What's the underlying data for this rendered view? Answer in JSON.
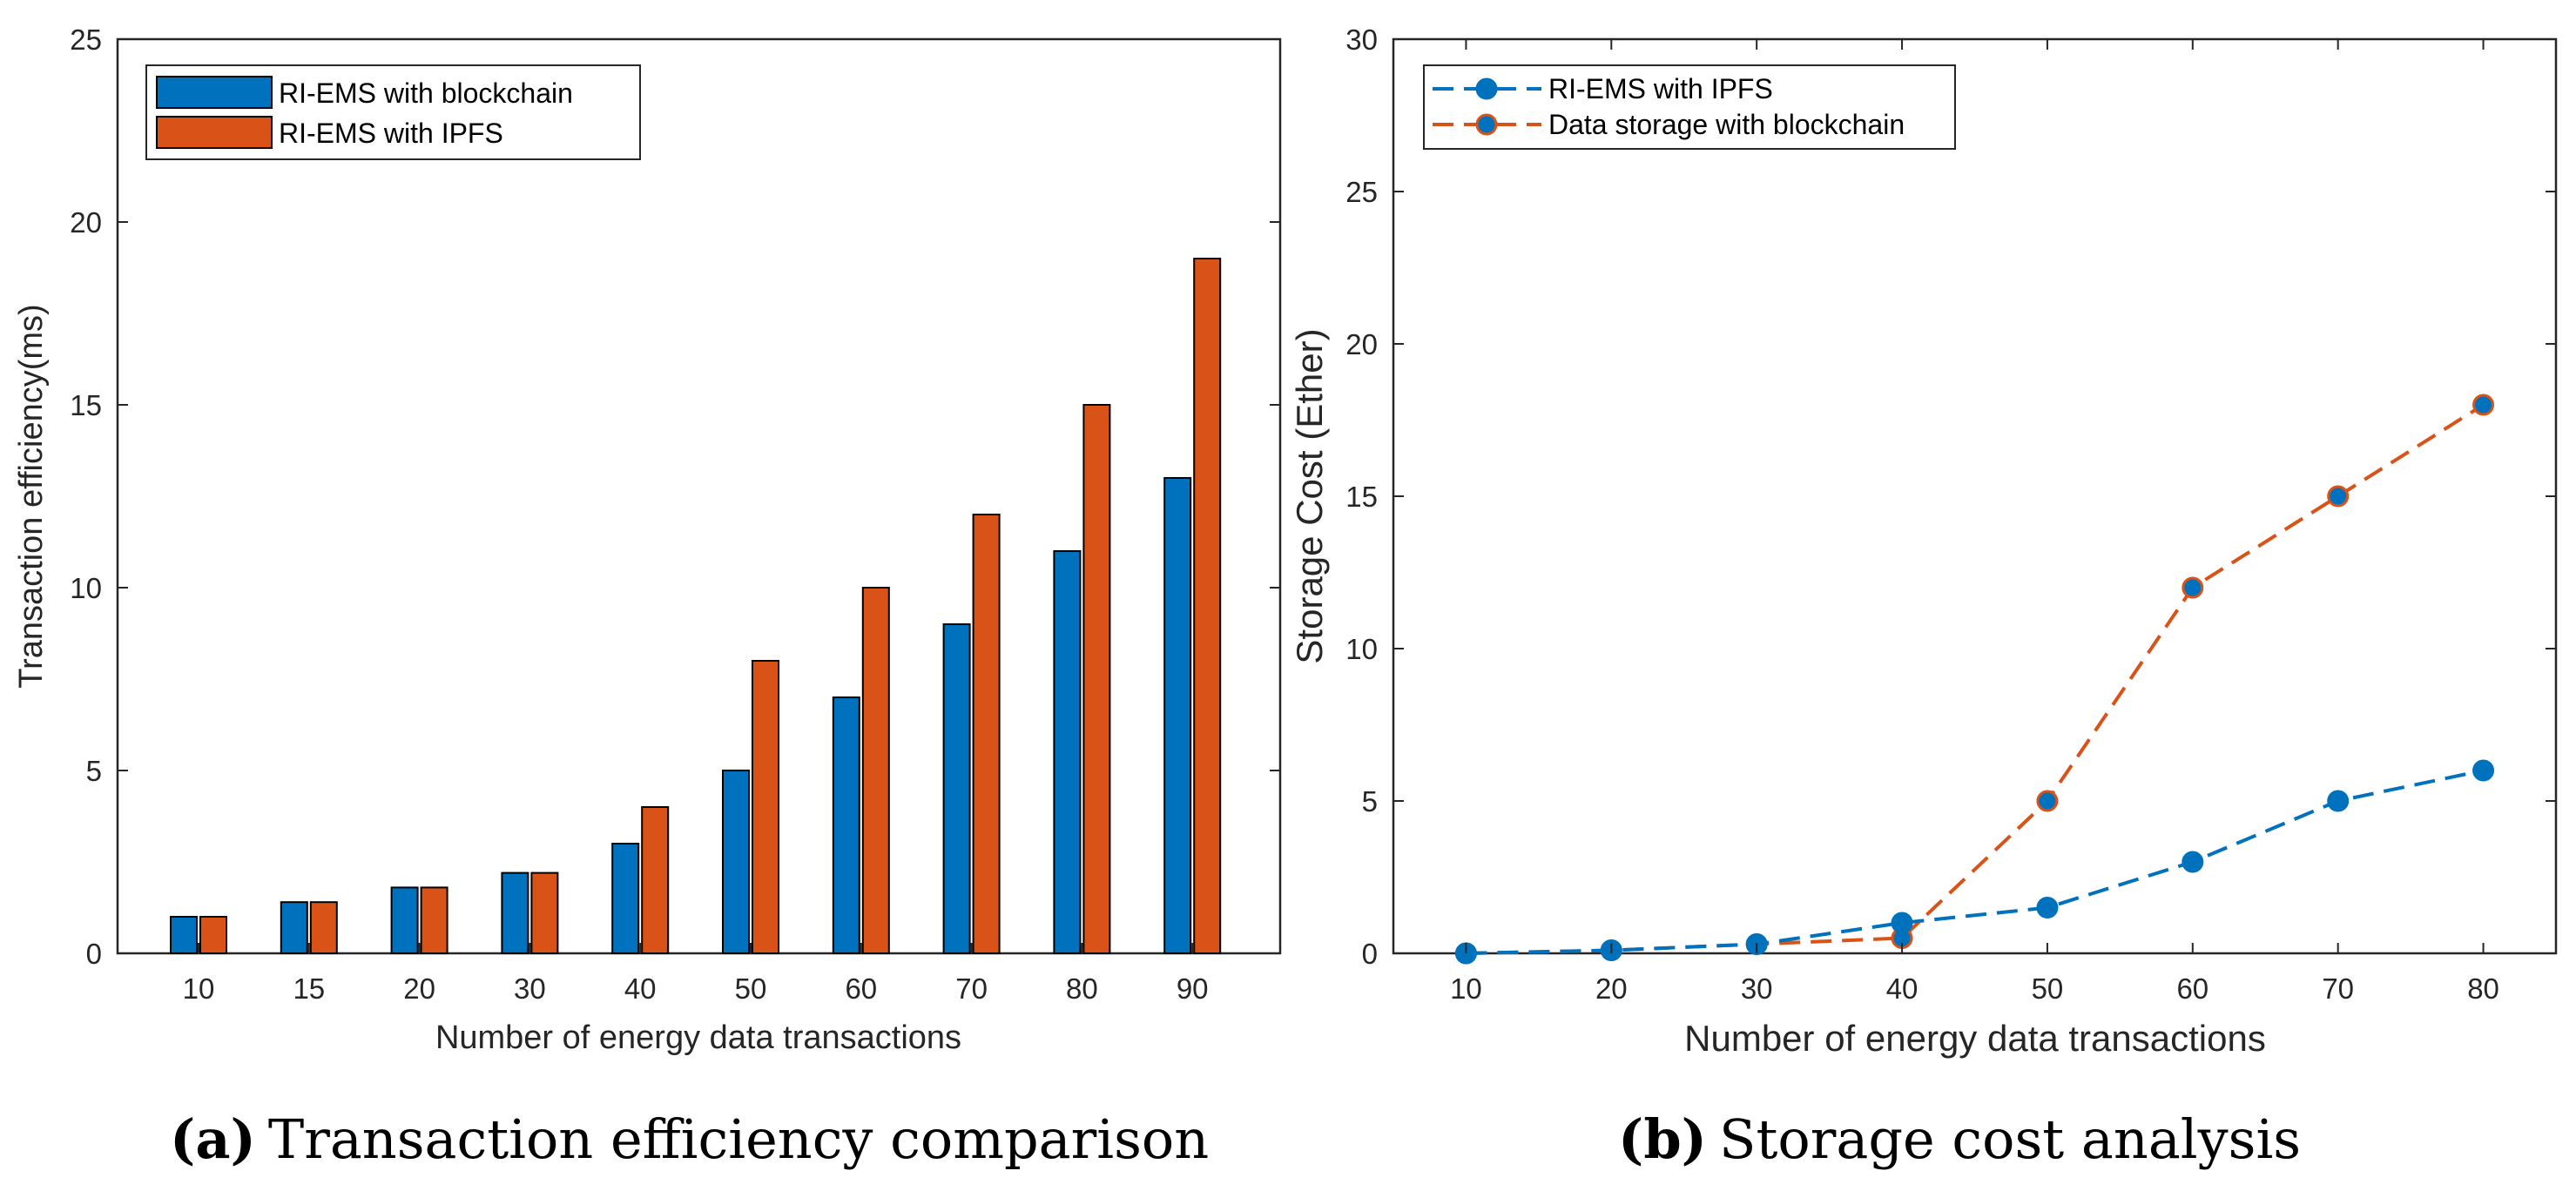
{
  "colors": {
    "series1": "#0072BD",
    "series2": "#D95319",
    "axis": "#262626"
  },
  "chart_data": [
    {
      "type": "bar",
      "categories": [
        "10",
        "15",
        "20",
        "30",
        "40",
        "50",
        "60",
        "70",
        "80",
        "90"
      ],
      "series": [
        {
          "name": "RI-EMS with blockchain",
          "values": [
            1,
            1.4,
            1.8,
            2.2,
            3,
            5,
            7,
            9,
            11,
            13
          ]
        },
        {
          "name": "RI-EMS with IPFS",
          "values": [
            1,
            1.4,
            1.8,
            2.2,
            4,
            8,
            10,
            12,
            15,
            19
          ]
        }
      ],
      "xlabel": "Number of energy data transactions",
      "ylabel": "Transaction efficiency(ms)",
      "ylim": [
        0,
        25
      ],
      "yticks": [
        "0",
        "5",
        "10",
        "15",
        "20",
        "25"
      ],
      "legend_position": "top-left",
      "caption_label": "(a)",
      "caption_text": "Transaction efficiency comparison"
    },
    {
      "type": "line",
      "x": [
        10,
        20,
        30,
        40,
        50,
        60,
        70,
        80
      ],
      "xticks": [
        "10",
        "20",
        "30",
        "40",
        "50",
        "60",
        "70",
        "80"
      ],
      "series": [
        {
          "name": "RI-EMS with IPFS",
          "values": [
            0,
            0.1,
            0.3,
            1,
            1.5,
            3,
            5,
            6
          ]
        },
        {
          "name": "Data storage with blockchain",
          "values": [
            0,
            0.1,
            0.3,
            0.5,
            5,
            12,
            15,
            18
          ]
        }
      ],
      "xlabel": "Number of energy data transactions",
      "ylabel": "Storage Cost (Ether)",
      "xlim": [
        5,
        85
      ],
      "ylim": [
        0,
        30
      ],
      "yticks": [
        "0",
        "5",
        "10",
        "15",
        "20",
        "25",
        "30"
      ],
      "legend_position": "top-left",
      "caption_label": "(b)",
      "caption_text": "Storage cost analysis"
    }
  ]
}
